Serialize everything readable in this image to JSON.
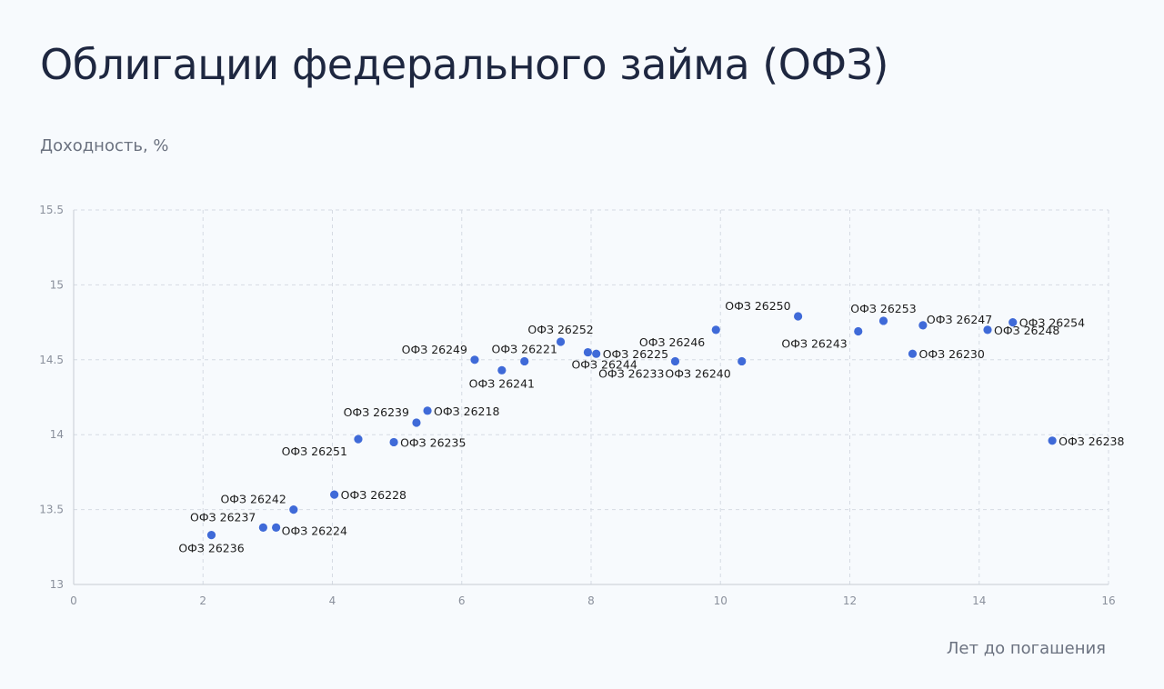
{
  "page": {
    "title": "Облигации федерального займа (ОФЗ)"
  },
  "chart_data": {
    "type": "scatter",
    "title": "Облигации федерального займа (ОФЗ)",
    "xlabel": "Лет до погашения",
    "ylabel": "Доходность, %",
    "xlim": [
      0,
      16
    ],
    "ylim": [
      13,
      15.5
    ],
    "x_ticks": [
      0,
      2,
      4,
      6,
      8,
      10,
      12,
      14,
      16
    ],
    "y_ticks": [
      13,
      13.5,
      14,
      14.5,
      15,
      15.5
    ],
    "grid": true,
    "point_color": "#3f6ad8",
    "points": [
      {
        "label": "ОФЗ 26236",
        "x": 2.13,
        "y": 13.33,
        "pos": "below"
      },
      {
        "label": "ОФЗ 26237",
        "x": 2.93,
        "y": 13.38,
        "pos": "above-left"
      },
      {
        "label": "ОФЗ 26224",
        "x": 3.13,
        "y": 13.38,
        "pos": "right-low"
      },
      {
        "label": "ОФЗ 26242",
        "x": 3.4,
        "y": 13.5,
        "pos": "above-left"
      },
      {
        "label": "ОФЗ 26228",
        "x": 4.03,
        "y": 13.6,
        "pos": "right"
      },
      {
        "label": "ОФЗ 26251",
        "x": 4.4,
        "y": 13.97,
        "pos": "below-left"
      },
      {
        "label": "ОФЗ 26235",
        "x": 4.95,
        "y": 13.95,
        "pos": "right"
      },
      {
        "label": "ОФЗ 26239",
        "x": 5.3,
        "y": 14.08,
        "pos": "above-left"
      },
      {
        "label": "ОФЗ 26218",
        "x": 5.47,
        "y": 14.16,
        "pos": "right"
      },
      {
        "label": "ОФЗ 26249",
        "x": 6.2,
        "y": 14.5,
        "pos": "above-left"
      },
      {
        "label": "ОФЗ 26241",
        "x": 6.62,
        "y": 14.43,
        "pos": "below"
      },
      {
        "label": "ОФЗ 26221",
        "x": 6.97,
        "y": 14.49,
        "pos": "above"
      },
      {
        "label": "ОФЗ 26252",
        "x": 7.53,
        "y": 14.62,
        "pos": "above"
      },
      {
        "label": "ОФЗ 26244",
        "x": 7.95,
        "y": 14.55,
        "pos": "below-right"
      },
      {
        "label": "ОФЗ 26225",
        "x": 8.08,
        "y": 14.54,
        "pos": "right"
      },
      {
        "label": "ОФЗ 26233",
        "x": 9.3,
        "y": 14.49,
        "pos": "below-left"
      },
      {
        "label": "ОФЗ 26246",
        "x": 9.93,
        "y": 14.7,
        "pos": "below-left"
      },
      {
        "label": "ОФЗ 26240",
        "x": 10.33,
        "y": 14.49,
        "pos": "below-left"
      },
      {
        "label": "ОФЗ 26250",
        "x": 11.2,
        "y": 14.79,
        "pos": "above-left"
      },
      {
        "label": "ОФЗ 26243",
        "x": 12.13,
        "y": 14.69,
        "pos": "below-left"
      },
      {
        "label": "ОФЗ 26253",
        "x": 12.52,
        "y": 14.76,
        "pos": "above"
      },
      {
        "label": "ОФЗ 26230",
        "x": 12.97,
        "y": 14.54,
        "pos": "right"
      },
      {
        "label": "ОФЗ 26247",
        "x": 13.13,
        "y": 14.73,
        "pos": "right-high"
      },
      {
        "label": "ОФЗ 26248",
        "x": 14.13,
        "y": 14.7,
        "pos": "right"
      },
      {
        "label": "ОФЗ 26254",
        "x": 14.52,
        "y": 14.75,
        "pos": "right"
      },
      {
        "label": "ОФЗ 26238",
        "x": 15.13,
        "y": 13.96,
        "pos": "right"
      }
    ]
  }
}
